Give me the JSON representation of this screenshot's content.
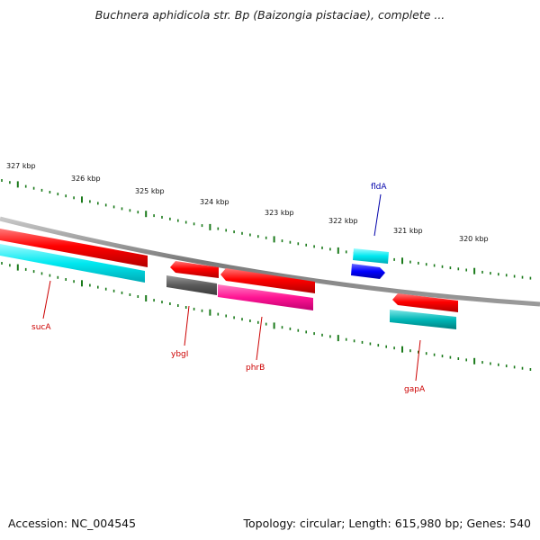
{
  "title": "Buchnera aphidicola str. Bp (Baizongia pistaciae), complete ...",
  "footer": {
    "accession": "Accession: NC_004545",
    "summary": "Topology: circular; Length: 615,980 bp; Genes: 540"
  },
  "ruler": {
    "labels": [
      "327 kbp",
      "326 kbp",
      "325 kbp",
      "324 kbp",
      "323 kbp",
      "322 kbp",
      "321 kbp",
      "320 kbp"
    ],
    "tick_color": "#1a7a1a"
  },
  "genes": [
    {
      "name": "sucA",
      "color": "#cc0000"
    },
    {
      "name": "ybgI",
      "color": "#cc0000"
    },
    {
      "name": "phrB",
      "color": "#cc0000"
    },
    {
      "name": "gapA",
      "color": "#cc0000"
    },
    {
      "name": "fldA",
      "color": "#0000aa"
    }
  ],
  "colors": {
    "forward_red": "#ff0000",
    "cyan": "#00e5ee",
    "blue": "#0000ff",
    "grey": "#606060",
    "magenta": "#ff1493",
    "teal": "#00b5b5",
    "backbone": "#808080"
  }
}
